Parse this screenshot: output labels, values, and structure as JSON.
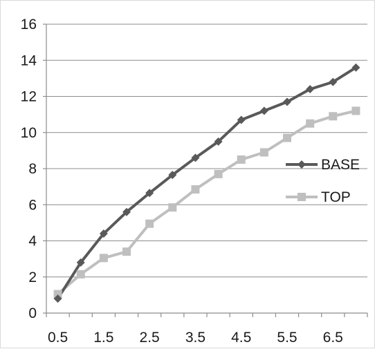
{
  "chart_data": {
    "type": "line",
    "title": "",
    "xlabel": "",
    "ylabel": "",
    "x": [
      0.5,
      1.0,
      1.5,
      2.0,
      2.5,
      3.0,
      3.5,
      4.0,
      4.5,
      5.0,
      5.5,
      6.0,
      6.5,
      7.0
    ],
    "xticks": [
      "0.5",
      "1.5",
      "2.5",
      "3.5",
      "4.5",
      "5.5",
      "6.5"
    ],
    "xlim": [
      0.25,
      7.25
    ],
    "ylim": [
      0,
      16
    ],
    "yticks": [
      "0",
      "2",
      "4",
      "6",
      "8",
      "10",
      "12",
      "14",
      "16"
    ],
    "grid": "horizontal",
    "legend_position": "right",
    "series": [
      {
        "name": "BASE",
        "color": "#595959",
        "marker": "diamond",
        "values": [
          0.8,
          2.8,
          4.4,
          5.6,
          6.65,
          7.65,
          8.6,
          9.5,
          10.7,
          11.2,
          11.7,
          12.4,
          12.8,
          13.6
        ]
      },
      {
        "name": "TOP",
        "color": "#bfbfbf",
        "marker": "square",
        "values": [
          1.05,
          2.15,
          3.05,
          3.4,
          4.95,
          5.85,
          6.85,
          7.7,
          8.5,
          8.9,
          9.7,
          10.5,
          10.9,
          11.2
        ]
      }
    ]
  }
}
